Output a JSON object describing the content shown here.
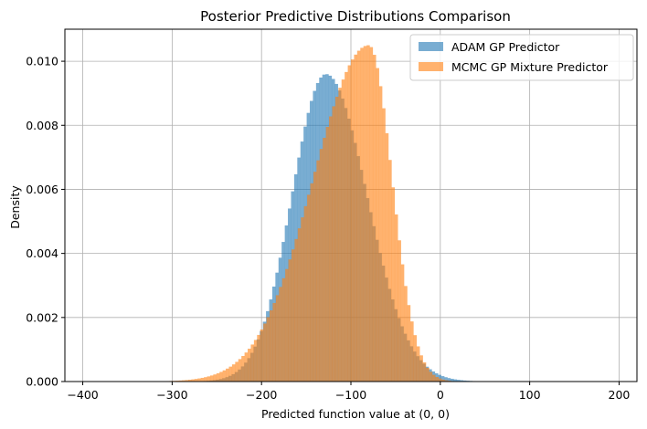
{
  "chart_data": {
    "type": "bar",
    "subtype": "overlaid-histogram",
    "title": "Posterior Predictive Distributions Comparison",
    "xlabel": "Predicted function value at (0, 0)",
    "ylabel": "Density",
    "xlim": [
      -420,
      220
    ],
    "ylim": [
      0,
      0.011
    ],
    "xticks": [
      -400,
      -300,
      -200,
      -100,
      0,
      100,
      200
    ],
    "xtick_labels": [
      "−400",
      "−300",
      "−200",
      "−100",
      "0",
      "100",
      "200"
    ],
    "yticks": [
      0,
      0.002,
      0.004,
      0.006,
      0.008,
      0.01
    ],
    "ytick_labels": [
      "0.000",
      "0.002",
      "0.004",
      "0.006",
      "0.008",
      "0.010"
    ],
    "grid": true,
    "legend_position": "top-right",
    "series": [
      {
        "name": "ADAM GP Predictor",
        "color": "#1f77b4",
        "alpha": 0.6,
        "bin_range": [
          -300,
          50
        ],
        "bin_width": 3.5,
        "distribution": {
          "shape": "skew-normal",
          "mode": -128,
          "peak_density": 0.0096,
          "left_scale": 38,
          "right_scale": 46,
          "tail_start": -300,
          "tail_end": 50
        }
      },
      {
        "name": "MCMC GP Mixture Predictor",
        "color": "#ff7f0e",
        "alpha": 0.6,
        "bin_range": [
          -310,
          75
        ],
        "bin_width": 3.5,
        "distribution": {
          "shape": "skew-normal",
          "mode": -80,
          "peak_density": 0.0105,
          "left_scale": 62,
          "right_scale": 26,
          "tail_start": -310,
          "tail_end": 75
        }
      }
    ]
  }
}
